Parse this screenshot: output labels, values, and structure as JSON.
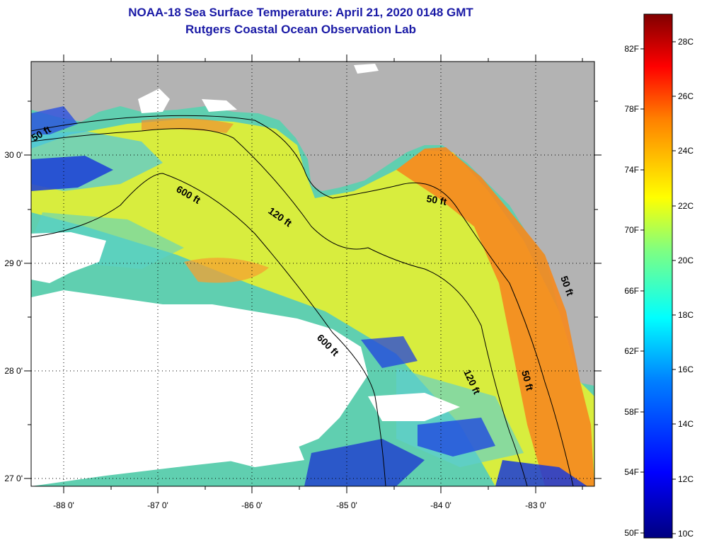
{
  "title": {
    "line1": "NOAA-18 Sea Surface Temperature:  April 21, 2020 0148 GMT",
    "line2": "Rutgers Coastal Ocean Observation Lab"
  },
  "map": {
    "lon_labels": [
      "-88 0'",
      "-87 0'",
      "-86 0'",
      "-85 0'",
      "-84 0'",
      "-83 0'"
    ],
    "lat_labels": [
      "30 0'",
      "29 0'",
      "28 0'",
      "27 0'"
    ],
    "contour_labels": [
      "50 ft",
      "600 ft",
      "120 ft",
      "50 ft",
      "600 ft",
      "120 ft",
      "50 ft",
      "50 ft"
    ],
    "land_color": "#b3b3b3",
    "cloud_color": "#ffffff"
  },
  "colorbar": {
    "fahrenheit_labels": [
      "82F",
      "78F",
      "74F",
      "70F",
      "66F",
      "62F",
      "58F",
      "54F",
      "50F"
    ],
    "celsius_labels": [
      "28C",
      "26C",
      "24C",
      "22C",
      "20C",
      "18C",
      "16C",
      "14C",
      "12C",
      "10C"
    ],
    "stops": [
      "#000080",
      "#0000ff",
      "#0080ff",
      "#00ffff",
      "#80ff80",
      "#ffff00",
      "#ff8000",
      "#ff0000",
      "#800000"
    ]
  }
}
